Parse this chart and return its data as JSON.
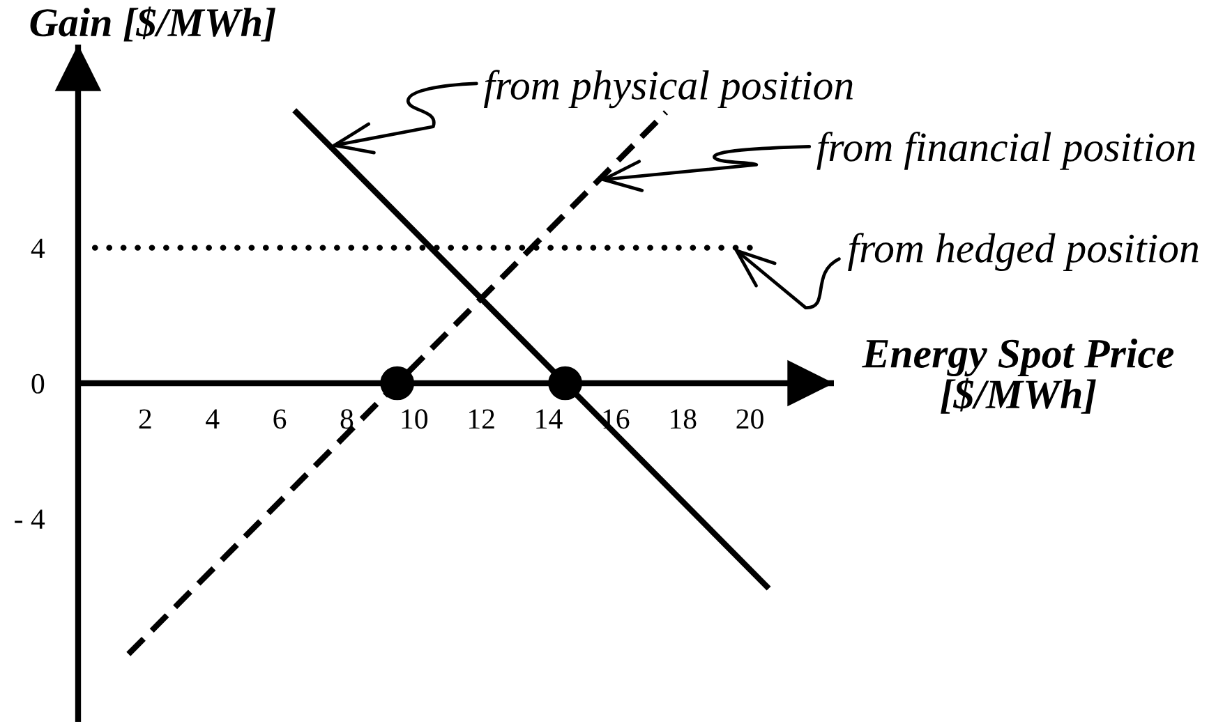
{
  "chart_data": {
    "type": "line",
    "xlabel": "Energy Spot Price\n[$/MWh]",
    "ylabel": "Gain [$/MWh]",
    "xlim": [
      0,
      22.5
    ],
    "ylim": [
      -10,
      10
    ],
    "xticks": [
      2,
      4,
      6,
      8,
      10,
      12,
      14,
      16,
      18,
      20
    ],
    "yticks": [
      {
        "value": -4,
        "label": "- 4"
      },
      0,
      4
    ],
    "series": [
      {
        "x": [
          6.5,
          20.5
        ],
        "values": [
          8,
          -6
        ],
        "color": "#000000",
        "line_style": "solid"
      },
      {
        "x": [
          1.5,
          17.5
        ],
        "values": [
          -8,
          8
        ],
        "color": "#000000",
        "line_style": "dashed"
      },
      {
        "x": [
          0.5,
          20
        ],
        "values": [
          4,
          4
        ],
        "color": "#000000",
        "line_style": "dotted"
      },
      {
        "type": "scatter",
        "x": [
          9.5,
          14.5
        ],
        "values": [
          0,
          0
        ],
        "color": "#000000",
        "marker": "circle"
      }
    ],
    "annotations": [
      {
        "text": "from physical position",
        "x": 7.5,
        "y": 7
      },
      {
        "text": "from financial position",
        "x": 15.5,
        "y": 6
      },
      {
        "text": "from hedged position",
        "x": 19.5,
        "y": 4
      }
    ]
  }
}
